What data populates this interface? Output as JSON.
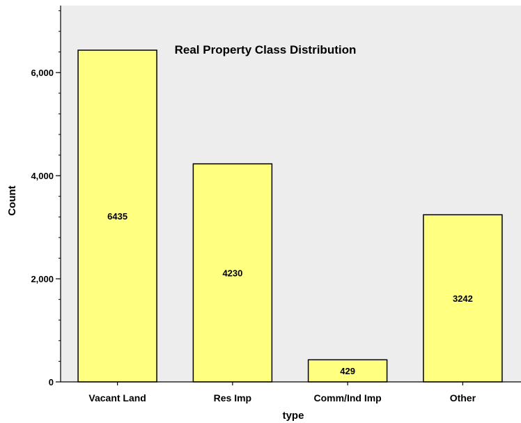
{
  "chart_data": {
    "type": "bar",
    "title": "Real Property Class Distribution",
    "xlabel": "type",
    "ylabel": "Count",
    "categories": [
      "Vacant Land",
      "Res Imp",
      "Comm/Ind Imp",
      "Other"
    ],
    "values": [
      6435,
      4230,
      429,
      3242
    ],
    "data_labels": [
      "6435",
      "4230",
      "429",
      "3242"
    ],
    "ylim": [
      0,
      7300
    ],
    "yticks": [
      0,
      2000,
      4000,
      6000
    ],
    "ytick_labels": [
      "0",
      "2,000",
      "4,000",
      "6,000"
    ],
    "yminor_step": 400,
    "grid": false,
    "legend": "none",
    "colors": {
      "bar_fill": "#FFFF80",
      "bar_stroke": "#000000",
      "plot_background": "#EDEDED"
    }
  }
}
